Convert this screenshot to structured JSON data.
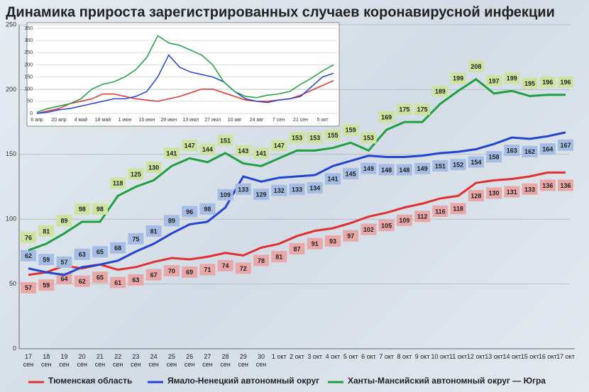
{
  "chart_data": [
    {
      "type": "line",
      "title": "Динамика прироста зарегистрированных случаев коронавирусной инфекции",
      "categories": [
        "17 сен",
        "18 сен",
        "19 сен",
        "20 сен",
        "21 сен",
        "22 сен",
        "23 сен",
        "24 сен",
        "25 сен",
        "26 сен",
        "27 сен",
        "28 сен",
        "29 сен",
        "30 сен",
        "1 окт",
        "2 окт",
        "3 окт",
        "4 окт",
        "5 окт",
        "6 окт",
        "7 окт",
        "8 окт",
        "9 окт",
        "10 окт",
        "11 окт",
        "12 окт",
        "13 окт",
        "14 окт",
        "15 окт",
        "16 окт",
        "17 окт"
      ],
      "series": [
        {
          "name": "Тюменская область",
          "color": "#e03030",
          "values": [
            57,
            59,
            64,
            62,
            65,
            61,
            63,
            67,
            70,
            69,
            71,
            74,
            72,
            78,
            81,
            87,
            91,
            93,
            97,
            102,
            105,
            109,
            112,
            116,
            118,
            128,
            130,
            131,
            133,
            136,
            136
          ]
        },
        {
          "name": "Ямало-Ненецкий автономный округ",
          "color": "#2244d0",
          "values": [
            62,
            59,
            57,
            63,
            65,
            68,
            75,
            81,
            89,
            96,
            98,
            109,
            133,
            129,
            132,
            133,
            134,
            141,
            145,
            149,
            148,
            148,
            149,
            151,
            152,
            154,
            158,
            163,
            162,
            164,
            167
          ]
        },
        {
          "name": "Ханты-Мансийский автономный округ — Югра",
          "color": "#1fa040",
          "values": [
            76,
            81,
            89,
            98,
            98,
            118,
            125,
            130,
            141,
            147,
            144,
            151,
            143,
            141,
            147,
            153,
            153,
            155,
            159,
            153,
            169,
            175,
            175,
            189,
            199,
            208,
            197,
            199,
            195,
            196,
            196
          ]
        }
      ],
      "ylim": [
        0,
        250
      ],
      "yticks": [
        0,
        50,
        100,
        150,
        200,
        250
      ],
      "grid": true
    },
    {
      "type": "line",
      "categories": [
        "6 апр",
        null,
        "20 апр",
        null,
        "4 май",
        null,
        "18 май",
        null,
        "1 июн",
        null,
        "15 июн",
        null,
        "29 июн",
        null,
        "13 июл",
        null,
        "27 июл",
        null,
        "10 авг",
        null,
        "24 авг",
        null,
        "7 сен",
        null,
        "21 сен",
        null,
        "5 окт",
        null
      ],
      "series": [
        {
          "color": "#e03030",
          "values": [
            0,
            10,
            20,
            40,
            50,
            60,
            80,
            80,
            70,
            60,
            55,
            50,
            60,
            70,
            85,
            100,
            100,
            85,
            70,
            55,
            50,
            50,
            55,
            60,
            75,
            95,
            115,
            135
          ]
        },
        {
          "color": "#2244d0",
          "values": [
            0,
            5,
            15,
            20,
            30,
            40,
            50,
            60,
            60,
            70,
            90,
            150,
            240,
            190,
            170,
            160,
            150,
            130,
            90,
            60,
            50,
            45,
            55,
            60,
            70,
            110,
            150,
            165
          ]
        },
        {
          "color": "#1fa040",
          "values": [
            5,
            20,
            30,
            40,
            60,
            100,
            120,
            130,
            150,
            180,
            230,
            320,
            290,
            280,
            260,
            240,
            200,
            130,
            90,
            70,
            65,
            75,
            80,
            90,
            120,
            145,
            175,
            200
          ]
        }
      ],
      "ylim": [
        0,
        350
      ],
      "yticks": [
        0,
        50,
        100,
        150,
        200,
        250,
        300,
        350
      ],
      "grid": true
    }
  ]
}
